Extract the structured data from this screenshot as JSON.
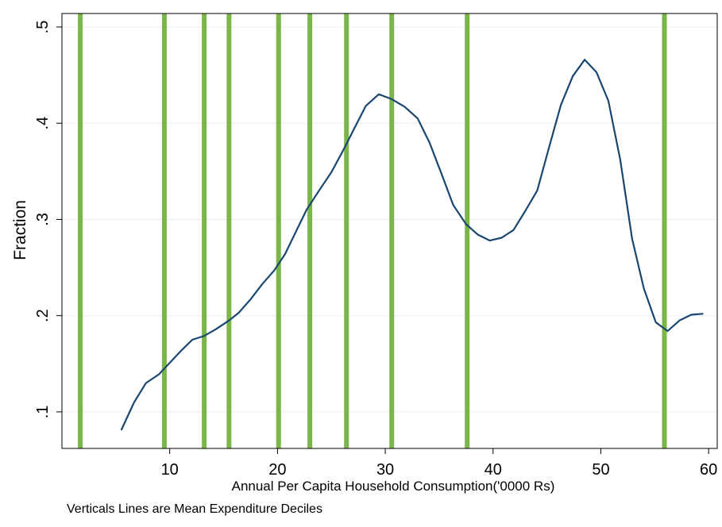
{
  "chart_data": {
    "type": "line",
    "xlabel": "Annual Per Capita Household Consumption('0000 Rs)",
    "ylabel": "Fraction",
    "note": "Verticals Lines are Mean Expenditure Deciles",
    "xlim": [
      0,
      60.8
    ],
    "ylim": [
      0.062,
      0.514
    ],
    "x_ticks": [
      10,
      20,
      30,
      40,
      50,
      60
    ],
    "x_tick_labels": [
      "10",
      "20",
      "30",
      "40",
      "50",
      "60"
    ],
    "y_ticks": [
      0.1,
      0.2,
      0.3,
      0.4,
      0.5
    ],
    "y_tick_labels": [
      ".1",
      ".2",
      ".3",
      ".4",
      ".5"
    ],
    "grid": true,
    "deciles": [
      1.7,
      9.5,
      13.2,
      15.5,
      20.1,
      23.0,
      26.4,
      30.6,
      37.6,
      55.9
    ],
    "series": [
      {
        "color": "#1a476f",
        "points": [
          [
            5.5,
            0.081
          ],
          [
            6.7,
            0.11
          ],
          [
            7.8,
            0.13
          ],
          [
            9.0,
            0.139
          ],
          [
            10.0,
            0.151
          ],
          [
            11.1,
            0.164
          ],
          [
            12.1,
            0.175
          ],
          [
            13.2,
            0.179
          ],
          [
            14.3,
            0.186
          ],
          [
            15.5,
            0.195
          ],
          [
            16.4,
            0.203
          ],
          [
            17.5,
            0.217
          ],
          [
            18.6,
            0.233
          ],
          [
            19.7,
            0.247
          ],
          [
            20.7,
            0.264
          ],
          [
            21.7,
            0.287
          ],
          [
            22.7,
            0.31
          ],
          [
            23.8,
            0.329
          ],
          [
            25.0,
            0.349
          ],
          [
            26.1,
            0.372
          ],
          [
            27.1,
            0.394
          ],
          [
            28.2,
            0.418
          ],
          [
            29.4,
            0.43
          ],
          [
            30.6,
            0.425
          ],
          [
            31.8,
            0.417
          ],
          [
            33.0,
            0.405
          ],
          [
            34.1,
            0.38
          ],
          [
            35.2,
            0.348
          ],
          [
            36.3,
            0.315
          ],
          [
            37.5,
            0.295
          ],
          [
            38.6,
            0.284
          ],
          [
            39.7,
            0.278
          ],
          [
            40.8,
            0.281
          ],
          [
            41.9,
            0.289
          ],
          [
            43.0,
            0.309
          ],
          [
            44.1,
            0.33
          ],
          [
            45.2,
            0.375
          ],
          [
            46.3,
            0.419
          ],
          [
            47.4,
            0.449
          ],
          [
            48.5,
            0.466
          ],
          [
            49.6,
            0.453
          ],
          [
            50.7,
            0.423
          ],
          [
            51.8,
            0.362
          ],
          [
            52.9,
            0.28
          ],
          [
            54.0,
            0.228
          ],
          [
            55.1,
            0.193
          ],
          [
            56.2,
            0.184
          ],
          [
            57.3,
            0.195
          ],
          [
            58.4,
            0.201
          ],
          [
            59.5,
            0.202
          ]
        ]
      }
    ],
    "colors": {
      "line": "#1a476f",
      "verticals": "#7ab648",
      "grid": "#e8eef4",
      "background": "#ffffff"
    }
  }
}
